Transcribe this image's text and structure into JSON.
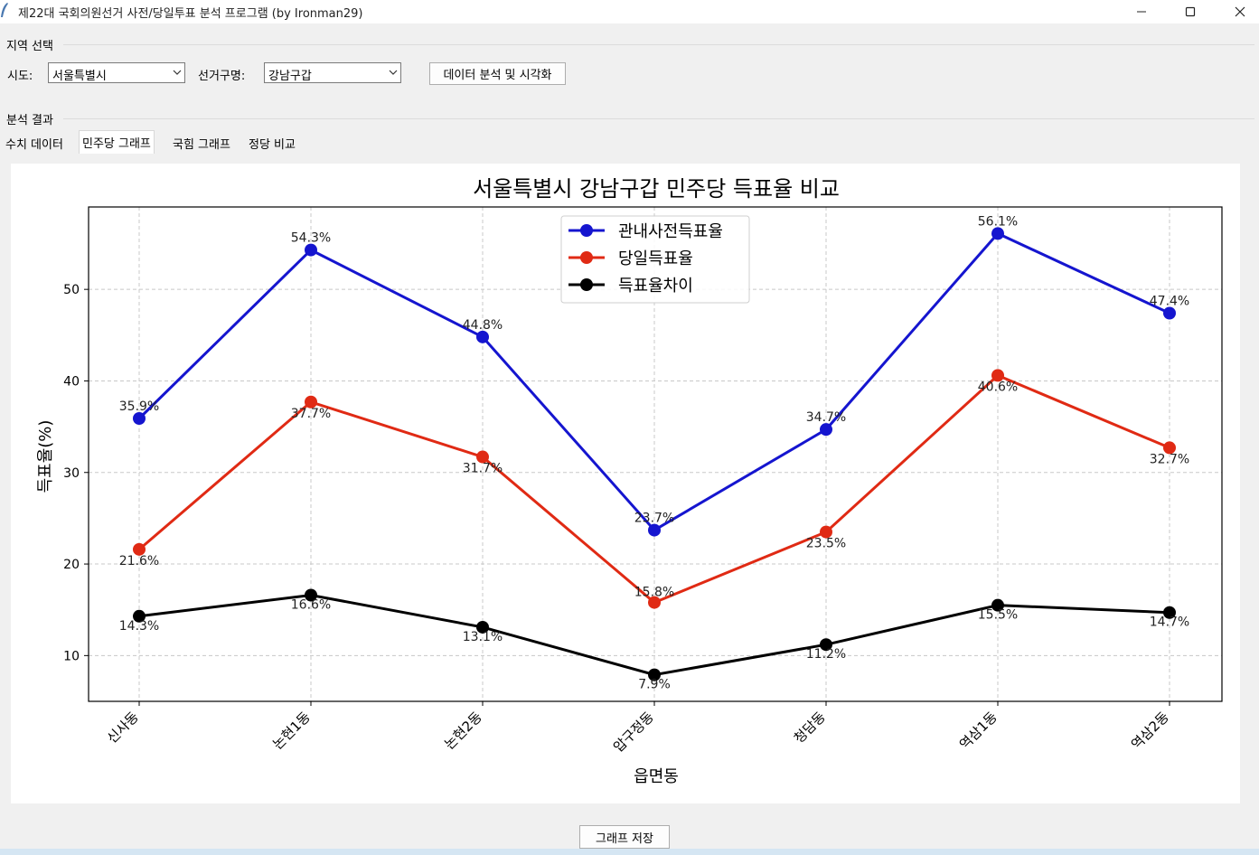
{
  "window": {
    "title": "제22대 국회의원선거 사전/당일투표 분석 프로그램 (by Ironman29)",
    "controls": {
      "minimize": "—",
      "maximize": "☐",
      "close": "✕"
    }
  },
  "region_group": {
    "label": "지역 선택",
    "sido_label": "시도:",
    "sido_value": "서울특별시",
    "district_label": "선거구명:",
    "district_value": "강남구갑",
    "analyze_button": "데이터 분석 및 시각화"
  },
  "results_group": {
    "label": "분석 결과",
    "tabs": [
      {
        "label": "수치 데이터",
        "active": false
      },
      {
        "label": "민주당 그래프",
        "active": true
      },
      {
        "label": "국힘 그래프",
        "active": false
      },
      {
        "label": "정당 비교",
        "active": false
      }
    ]
  },
  "save_button": "그래프 저장",
  "chart_data": {
    "type": "line",
    "title": "서울특별시 강남구갑 민주당 득표율 비교",
    "xlabel": "읍면동",
    "ylabel": "득표율(%)",
    "categories": [
      "신사동",
      "논현1동",
      "논현2동",
      "압구정동",
      "청담동",
      "역삼1동",
      "역삼2동"
    ],
    "ylim": [
      5,
      59
    ],
    "yticks": [
      10,
      20,
      30,
      40,
      50
    ],
    "grid": true,
    "legend_position": "top-center",
    "series": [
      {
        "name": "관내사전득표율",
        "color": "#1515cf",
        "values": [
          35.9,
          54.3,
          44.8,
          23.7,
          34.7,
          56.1,
          47.4
        ],
        "labels": [
          "35.9%",
          "54.3%",
          "44.8%",
          "23.7%",
          "34.7%",
          "56.1%",
          "47.4%"
        ]
      },
      {
        "name": "당일득표율",
        "color": "#e02a14",
        "values": [
          21.6,
          37.7,
          31.7,
          15.8,
          23.5,
          40.6,
          32.7
        ],
        "labels": [
          "21.6%",
          "37.7%",
          "31.7%",
          "15.8%",
          "23.5%",
          "40.6%",
          "32.7%"
        ]
      },
      {
        "name": "득표율차이",
        "color": "#000000",
        "values": [
          14.3,
          16.6,
          13.1,
          7.9,
          11.2,
          15.5,
          14.7
        ],
        "labels": [
          "14.3%",
          "16.6%",
          "13.1%",
          "7.9%",
          "11.2%",
          "15.5%",
          "14.7%"
        ]
      }
    ]
  }
}
